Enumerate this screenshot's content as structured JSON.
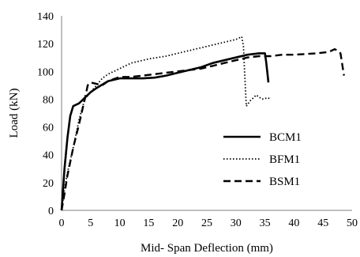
{
  "chart_data": {
    "type": "line",
    "xlabel": "Mid- Span Deflection  (mm)",
    "ylabel": "Load (kN)",
    "xlim": [
      0,
      50
    ],
    "ylim": [
      0,
      140
    ],
    "x_ticks": [
      0,
      5,
      10,
      15,
      20,
      25,
      30,
      35,
      40,
      45,
      50
    ],
    "y_ticks": [
      0,
      20,
      40,
      60,
      80,
      100,
      120,
      140
    ],
    "grid": false,
    "legend_position": "center-right",
    "series": [
      {
        "name": "BCM1",
        "style": "solid",
        "color": "#000000",
        "points": [
          [
            0,
            0
          ],
          [
            0.5,
            30
          ],
          [
            1,
            52
          ],
          [
            1.5,
            68
          ],
          [
            2,
            75
          ],
          [
            3,
            77
          ],
          [
            4,
            81
          ],
          [
            5,
            85
          ],
          [
            6,
            88
          ],
          [
            8,
            93
          ],
          [
            10,
            95
          ],
          [
            12,
            95
          ],
          [
            14,
            95
          ],
          [
            16,
            95.5
          ],
          [
            18,
            97
          ],
          [
            20,
            99
          ],
          [
            22,
            101
          ],
          [
            24,
            103
          ],
          [
            26,
            106
          ],
          [
            28,
            108
          ],
          [
            30,
            110
          ],
          [
            32,
            112
          ],
          [
            34,
            113
          ],
          [
            35,
            113
          ],
          [
            35.2,
            107
          ],
          [
            35.4,
            100
          ],
          [
            35.6,
            92
          ]
        ]
      },
      {
        "name": "BFM1",
        "style": "dotted",
        "color": "#000000",
        "points": [
          [
            0,
            0
          ],
          [
            0.5,
            15
          ],
          [
            1,
            27
          ],
          [
            2,
            45
          ],
          [
            3,
            65
          ],
          [
            4,
            80
          ],
          [
            5,
            85
          ],
          [
            6,
            90
          ],
          [
            7,
            95
          ],
          [
            8,
            98
          ],
          [
            10,
            102
          ],
          [
            12,
            106
          ],
          [
            15,
            109
          ],
          [
            18,
            111
          ],
          [
            20,
            113
          ],
          [
            22,
            115
          ],
          [
            24,
            117
          ],
          [
            26,
            119
          ],
          [
            28,
            121
          ],
          [
            30,
            123
          ],
          [
            31,
            125
          ],
          [
            31.3,
            118
          ],
          [
            31.5,
            100
          ],
          [
            31.8,
            75
          ],
          [
            32.5,
            79
          ],
          [
            33.5,
            83
          ],
          [
            34.5,
            80
          ],
          [
            35.5,
            81
          ],
          [
            36,
            80
          ]
        ]
      },
      {
        "name": "BSM1",
        "style": "dashed",
        "color": "#000000",
        "points": [
          [
            0,
            0
          ],
          [
            0.5,
            12
          ],
          [
            1,
            25
          ],
          [
            2,
            45
          ],
          [
            3,
            62
          ],
          [
            4,
            80
          ],
          [
            4.5,
            90
          ],
          [
            5,
            92
          ],
          [
            6,
            91
          ],
          [
            7,
            90
          ],
          [
            8,
            93
          ],
          [
            10,
            96
          ],
          [
            12,
            96
          ],
          [
            14,
            97
          ],
          [
            16,
            98
          ],
          [
            18,
            99
          ],
          [
            20,
            100
          ],
          [
            22,
            101
          ],
          [
            24,
            102
          ],
          [
            26,
            104
          ],
          [
            28,
            106
          ],
          [
            30,
            108
          ],
          [
            32,
            110
          ],
          [
            34,
            111
          ],
          [
            36,
            111
          ],
          [
            38,
            112
          ],
          [
            40,
            112
          ],
          [
            42,
            112.5
          ],
          [
            44,
            113
          ],
          [
            46,
            114
          ],
          [
            47,
            116
          ],
          [
            47.5,
            115
          ],
          [
            48,
            113
          ],
          [
            48.3,
            105
          ],
          [
            48.6,
            97
          ]
        ]
      }
    ]
  }
}
